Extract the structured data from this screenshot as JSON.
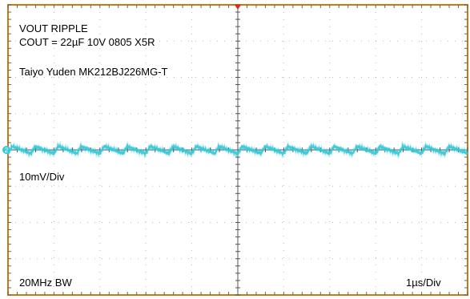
{
  "chart_data": {
    "type": "line",
    "annotations": {
      "title": "VOUT RIPPLE",
      "cap": "COUT = 22µF 10V 0805 X5R",
      "part": "Taiyo Yuden MK212BJ226MG-T",
      "vscale": "10mV/Div",
      "bandwidth": "20MHz BW",
      "timebase": "1µs/Div"
    },
    "channel_marker": "2",
    "x_divisions": 10,
    "y_divisions": 8,
    "series": [
      {
        "color": "#35c8d6",
        "x_range_us": [
          0,
          10
        ],
        "ripple_period_us": 0.5,
        "ripple_amplitude_mV": 2,
        "y_offset_div": 0.0
      }
    ],
    "colors": {
      "frame": "#c87a14",
      "grid": "#8a8a8a",
      "trigger": "#e32719",
      "trace": "#35c8d6"
    }
  }
}
